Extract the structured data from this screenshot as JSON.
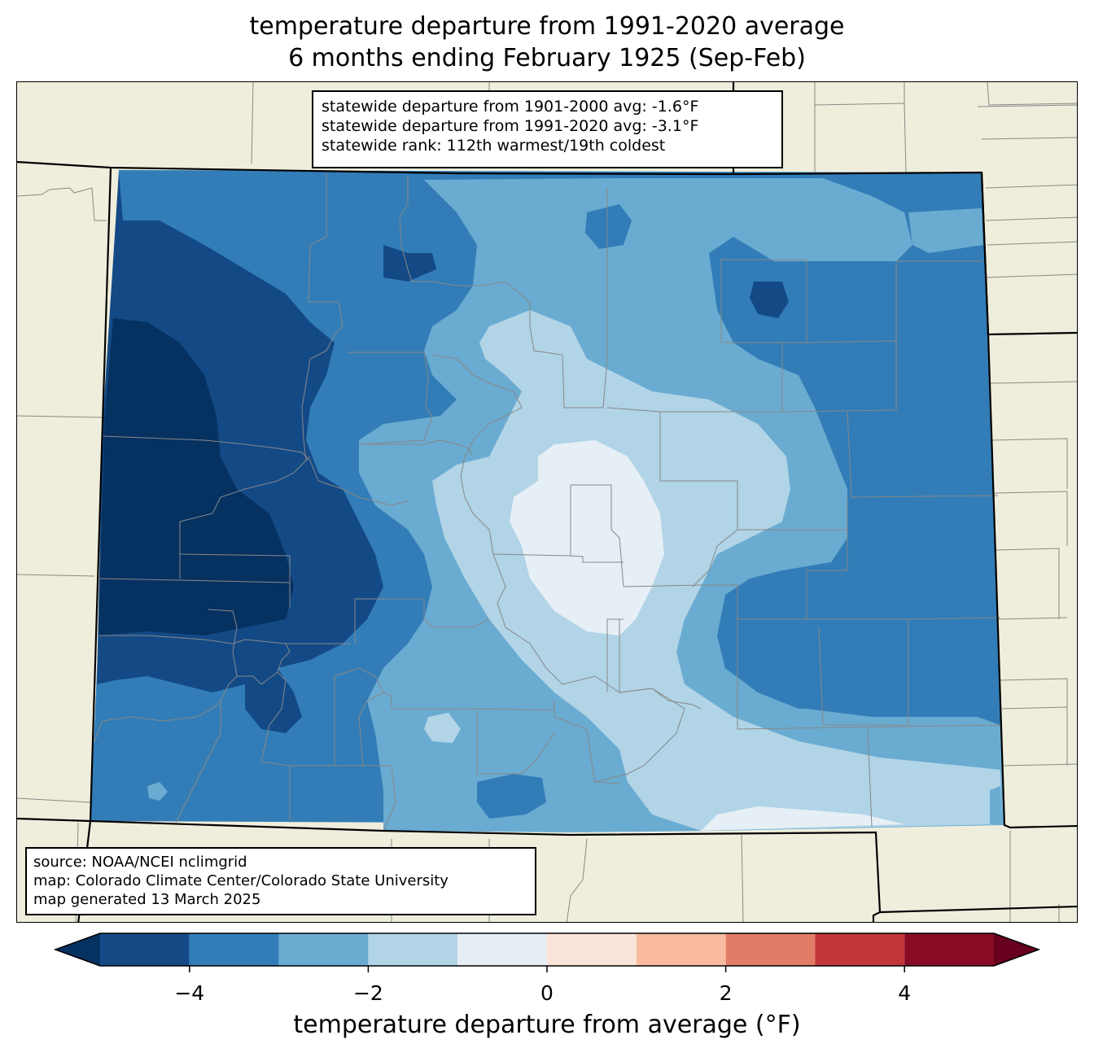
{
  "title": {
    "line1": "temperature departure from 1991-2020 average",
    "line2": "6 months ending February 1925 (Sep-Feb)"
  },
  "stats": {
    "line1": "statewide departure from 1901-2000 avg: -1.6°F",
    "line2": "statewide departure from 1991-2020 avg: -3.1°F",
    "line3": "statewide rank: 112th warmest/19th coldest"
  },
  "credits": {
    "line1": "source: NOAA/NCEI nclimgrid",
    "line2": "map: Colorado Climate Center/Colorado State University",
    "line3": "map generated 13 March 2025"
  },
  "colorbar": {
    "label": "temperature departure from average (°F)",
    "ticks": [
      "−4",
      "−2",
      "0",
      "2",
      "4"
    ],
    "tick_values": [
      -4,
      -2,
      0,
      2,
      4
    ],
    "range": [
      -5,
      5
    ],
    "bins": [
      {
        "from": -5,
        "to": -4,
        "color": "#134a86"
      },
      {
        "from": -4,
        "to": -3,
        "color": "#327db7"
      },
      {
        "from": -3,
        "to": -2,
        "color": "#6aabd1"
      },
      {
        "from": -2,
        "to": -1,
        "color": "#b1d4e7"
      },
      {
        "from": -1,
        "to": 0,
        "color": "#e6eff6"
      },
      {
        "from": 0,
        "to": 1,
        "color": "#fbe5da"
      },
      {
        "from": 1,
        "to": 2,
        "color": "#f8bba0"
      },
      {
        "from": 2,
        "to": 3,
        "color": "#e17d67"
      },
      {
        "from": 3,
        "to": 4,
        "color": "#c23639"
      },
      {
        "from": 4,
        "to": 5,
        "color": "#870b25"
      }
    ],
    "under_color": "#063262",
    "over_color": "#68001f"
  },
  "map_colors": {
    "land": "#efeedc",
    "county_lines": "#888888",
    "state_lines": "#000000"
  }
}
